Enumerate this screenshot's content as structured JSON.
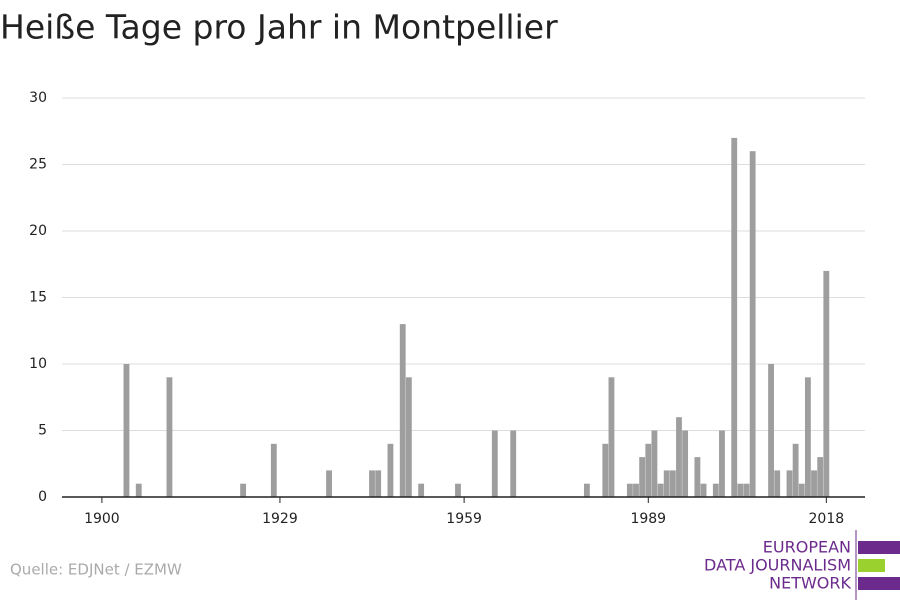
{
  "chart_data": {
    "type": "bar",
    "title": "Heiße Tage pro Jahr in Montpellier",
    "x": [
      1904,
      1906,
      1911,
      1923,
      1928,
      1937,
      1944,
      1945,
      1947,
      1949,
      1950,
      1952,
      1958,
      1964,
      1967,
      1979,
      1982,
      1983,
      1986,
      1987,
      1988,
      1989,
      1990,
      1991,
      1992,
      1993,
      1994,
      1995,
      1997,
      1998,
      2000,
      2001,
      2003,
      2004,
      2005,
      2006,
      2009,
      2010,
      2012,
      2013,
      2014,
      2015,
      2016,
      2017,
      2018
    ],
    "values": [
      10,
      1,
      9,
      1,
      4,
      2,
      2,
      2,
      4,
      13,
      9,
      1,
      1,
      5,
      5,
      1,
      4,
      9,
      1,
      1,
      3,
      4,
      5,
      1,
      2,
      2,
      6,
      5,
      3,
      1,
      1,
      5,
      27,
      1,
      1,
      26,
      10,
      2,
      2,
      4,
      1,
      9,
      2,
      3,
      17
    ],
    "color": "#9e9e9e",
    "xlim": [
      1893.5,
      2024.3
    ],
    "xticks": [
      1900,
      1929,
      1959,
      1989,
      2018
    ],
    "ylim": [
      0,
      30
    ],
    "yticks": [
      0,
      5,
      10,
      15,
      20,
      25,
      30
    ],
    "grid": true
  },
  "source": "Quelle: EDJNet / EZMW",
  "logo": [
    "EUROPEAN",
    "DATA JOURNALISM",
    "NETWORK"
  ]
}
